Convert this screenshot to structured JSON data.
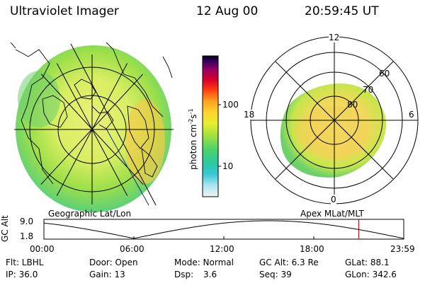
{
  "header": {
    "instrument": "Ultraviolet Imager",
    "date": "12 Aug 00",
    "time": "20:59:45 UT"
  },
  "colorbar": {
    "label": "photon cm",
    "label_sup1": "-2",
    "label_mid": "s",
    "label_sup2": "-1",
    "ticks": [
      "100",
      "10"
    ]
  },
  "left_image": {
    "caption": "Geographic Lat/Lon"
  },
  "right_image": {
    "caption": "Apex MLat/MLT",
    "mlt_labels": {
      "top": "12",
      "left": "18",
      "right": "6",
      "bottom": "0"
    },
    "lat_labels": [
      "60",
      "70",
      "80"
    ]
  },
  "altitude_plot": {
    "ylabel": "GC Alt",
    "yticks": [
      "9.0",
      "1.8"
    ],
    "xticks": [
      "00:00",
      "06:00",
      "12:00",
      "18:00",
      "23:59"
    ],
    "current_time_marker_hour": 21.0
  },
  "footer": {
    "filter": "Flt: LBHL",
    "ip": "IP: 36.0",
    "door": "Door: Open",
    "gain": "Gain: 13",
    "mode": "Mode: Normal",
    "dsp_label": "Dsp:",
    "dsp_value": "3.6",
    "gc_alt": "GC Alt: 6.3 Re",
    "seq": "Seq: 39",
    "glat": "GLat: 88.1",
    "glon": "GLon: 342.6"
  },
  "colors": {
    "marker": "#e00000",
    "grid": "#000000"
  }
}
